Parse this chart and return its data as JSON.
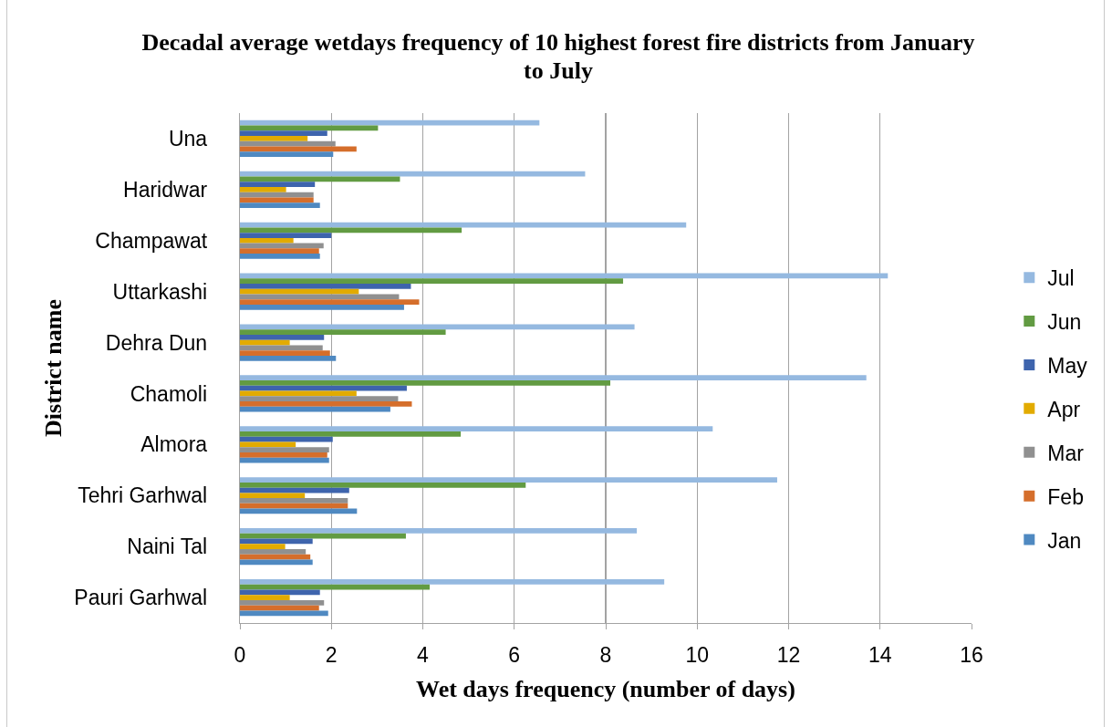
{
  "chart_data": {
    "type": "bar",
    "orientation": "horizontal",
    "title": "Decadal average wetdays frequency of 10 highest forest fire districts from January to July",
    "xlabel": "Wet days frequency (number of days)",
    "ylabel": "District name",
    "categories": [
      "Una",
      "Haridwar",
      "Champawat",
      "Uttarkashi",
      "Dehra Dun",
      "Chamoli",
      "Almora",
      "Tehri Garhwal",
      "Naini Tal",
      "Pauri Garhwal"
    ],
    "series": [
      {
        "name": "Jul",
        "color": "#95b9e0",
        "values": [
          6.55,
          7.55,
          9.76,
          14.17,
          8.63,
          13.7,
          10.34,
          11.75,
          8.68,
          9.28
        ]
      },
      {
        "name": "Jun",
        "color": "#629b42",
        "values": [
          3.02,
          3.5,
          4.85,
          8.38,
          4.5,
          8.1,
          4.83,
          6.25,
          3.63,
          4.15
        ]
      },
      {
        "name": "May",
        "color": "#3e64ad",
        "values": [
          1.91,
          1.64,
          2.0,
          3.74,
          1.84,
          3.65,
          2.03,
          2.39,
          1.59,
          1.75
        ]
      },
      {
        "name": "Apr",
        "color": "#e2ab00",
        "values": [
          1.48,
          1.01,
          1.17,
          2.6,
          1.09,
          2.55,
          1.22,
          1.42,
          0.99,
          1.09
        ]
      },
      {
        "name": "Mar",
        "color": "#909090",
        "values": [
          2.09,
          1.61,
          1.83,
          3.48,
          1.81,
          3.46,
          1.95,
          2.36,
          1.44,
          1.84
        ]
      },
      {
        "name": "Feb",
        "color": "#d56e2b",
        "values": [
          2.55,
          1.61,
          1.73,
          3.92,
          1.97,
          3.76,
          1.91,
          2.36,
          1.54,
          1.73
        ]
      },
      {
        "name": "Jan",
        "color": "#4f89c1",
        "values": [
          2.04,
          1.75,
          1.75,
          3.59,
          2.1,
          3.29,
          1.95,
          2.56,
          1.59,
          1.93
        ]
      }
    ],
    "xlim": [
      0,
      16
    ],
    "xticks": [
      0,
      2,
      4,
      6,
      8,
      10,
      12,
      14,
      16
    ],
    "grid": "x",
    "legend": "right"
  }
}
